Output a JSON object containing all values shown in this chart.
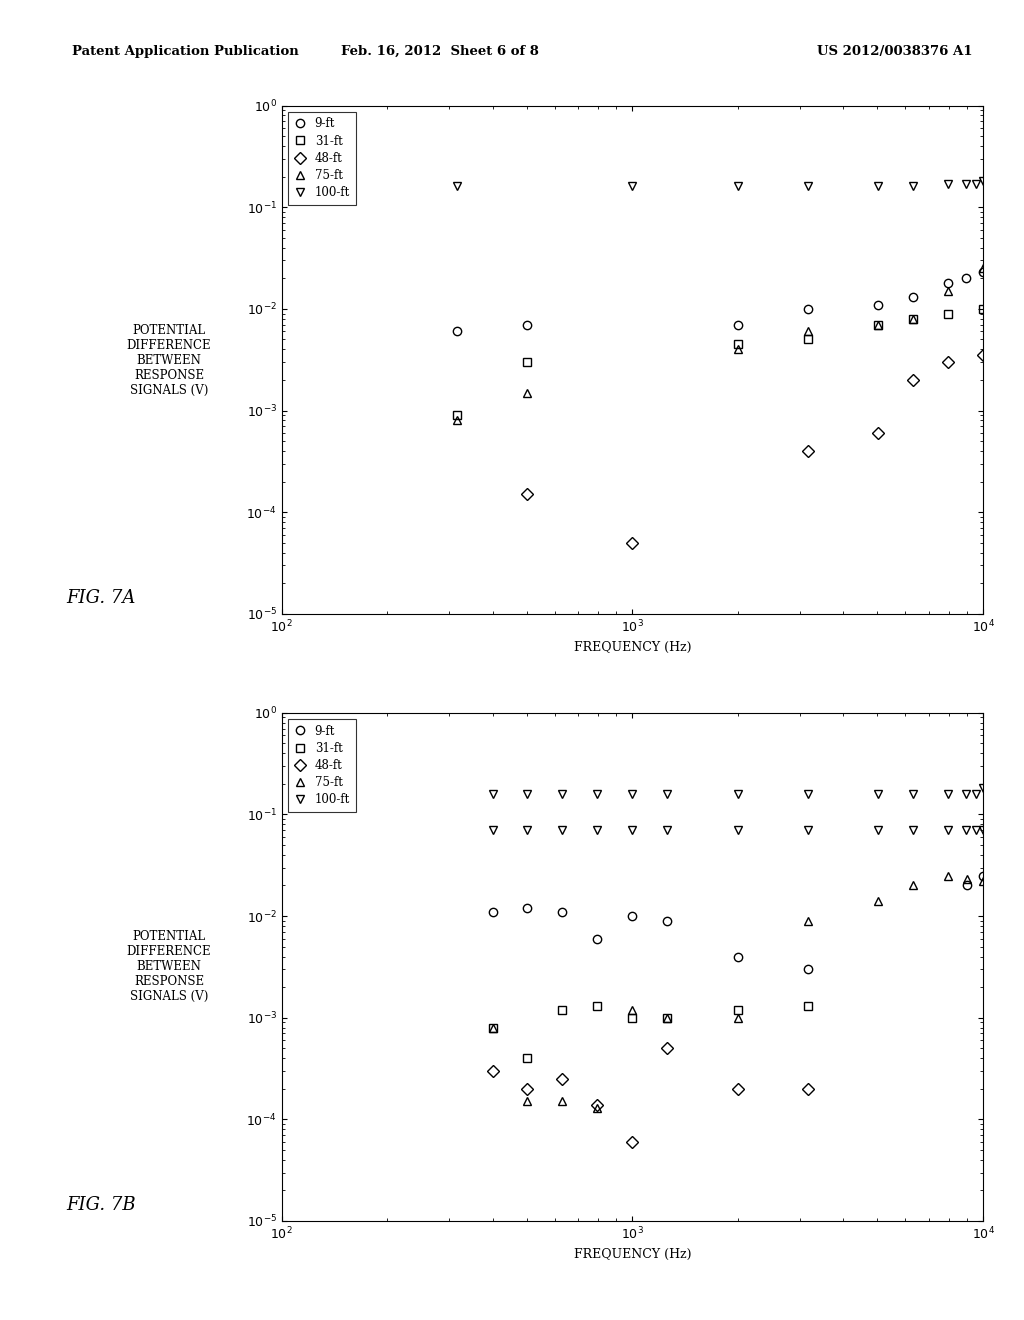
{
  "header_left": "Patent Application Publication",
  "header_center": "Feb. 16, 2012  Sheet 6 of 8",
  "header_right": "US 2012/0038376 A1",
  "fig_label_A": "FIG. 7A",
  "fig_label_B": "FIG. 7B",
  "ylabel": "POTENTIAL\nDIFFERENCE\nBETWEEN\nRESPONSE\nSIGNALS (V)",
  "xlabel": "FREQUENCY (Hz)",
  "legend_labels": [
    "9-ft",
    "31-ft",
    "48-ft",
    "75-ft",
    "100-ft"
  ],
  "markers": [
    "o",
    "s",
    "D",
    "^",
    "v"
  ],
  "figA": {
    "series_9ft": {
      "x": [
        316,
        500,
        2000,
        3162,
        5012,
        6310,
        7943,
        8913,
        10000
      ],
      "y": [
        0.006,
        0.007,
        0.007,
        0.01,
        0.011,
        0.013,
        0.018,
        0.02,
        0.023
      ]
    },
    "series_31ft": {
      "x": [
        316,
        500,
        2000,
        3162,
        5012,
        6310,
        7943,
        10000
      ],
      "y": [
        0.0009,
        0.003,
        0.0045,
        0.005,
        0.007,
        0.008,
        0.009,
        0.01
      ]
    },
    "series_48ft": {
      "x": [
        500,
        1000,
        3162,
        5012,
        6310,
        7943,
        10000
      ],
      "y": [
        0.00015,
        5e-05,
        0.0004,
        0.0006,
        0.002,
        0.003,
        0.0035
      ]
    },
    "series_75ft": {
      "x": [
        316,
        500,
        2000,
        3162,
        5012,
        6310,
        7943,
        10000
      ],
      "y": [
        0.0008,
        0.0015,
        0.004,
        0.006,
        0.007,
        0.008,
        0.015,
        0.025
      ]
    },
    "series_100ft": {
      "x": [
        316,
        1000,
        2000,
        3162,
        5012,
        6310,
        7943,
        8913,
        9550,
        10000
      ],
      "y": [
        0.16,
        0.16,
        0.16,
        0.16,
        0.16,
        0.16,
        0.17,
        0.17,
        0.17,
        0.18
      ]
    }
  },
  "figB": {
    "series_9ft": {
      "x": [
        400,
        500,
        630,
        794,
        1000,
        1259,
        2000,
        3162,
        9000,
        10000
      ],
      "y": [
        0.011,
        0.012,
        0.011,
        0.006,
        0.01,
        0.009,
        0.004,
        0.003,
        0.02,
        0.025
      ]
    },
    "series_31ft": {
      "x": [
        400,
        500,
        630,
        794,
        1000,
        1259,
        2000,
        3162
      ],
      "y": [
        0.0008,
        0.0004,
        0.0012,
        0.0013,
        0.001,
        0.001,
        0.0012,
        0.0013
      ]
    },
    "series_48ft": {
      "x": [
        400,
        500,
        630,
        794,
        1000,
        1259,
        2000,
        3162
      ],
      "y": [
        0.0003,
        0.0002,
        0.00025,
        0.00014,
        6e-05,
        0.0005,
        0.0002,
        0.0002
      ]
    },
    "series_75ft": {
      "x": [
        400,
        500,
        630,
        794,
        1000,
        1259,
        2000,
        3162,
        5012,
        6310,
        7943,
        9000,
        10000
      ],
      "y": [
        0.0008,
        0.00015,
        0.00015,
        0.00013,
        0.0012,
        0.001,
        0.001,
        0.009,
        0.014,
        0.02,
        0.025,
        0.023,
        0.022
      ]
    },
    "series_100ft_low": {
      "x": [
        400,
        500,
        630,
        794,
        1000,
        1259,
        2000,
        3162,
        5012,
        6310,
        7943,
        8913,
        9550,
        10000
      ],
      "y": [
        0.07,
        0.07,
        0.07,
        0.07,
        0.07,
        0.07,
        0.07,
        0.07,
        0.07,
        0.07,
        0.07,
        0.07,
        0.07,
        0.07
      ]
    },
    "series_100ft_high": {
      "x": [
        400,
        500,
        630,
        794,
        1000,
        1259,
        2000,
        3162,
        5012,
        6310,
        7943,
        8913,
        9550,
        10000
      ],
      "y": [
        0.16,
        0.16,
        0.16,
        0.16,
        0.16,
        0.16,
        0.16,
        0.16,
        0.16,
        0.16,
        0.16,
        0.16,
        0.16,
        0.18
      ]
    }
  },
  "xlim": [
    100,
    10000
  ],
  "ylim": [
    1e-05,
    1.0
  ],
  "background_color": "#ffffff",
  "marker_size": 6,
  "marker_edgewidth": 1.0
}
